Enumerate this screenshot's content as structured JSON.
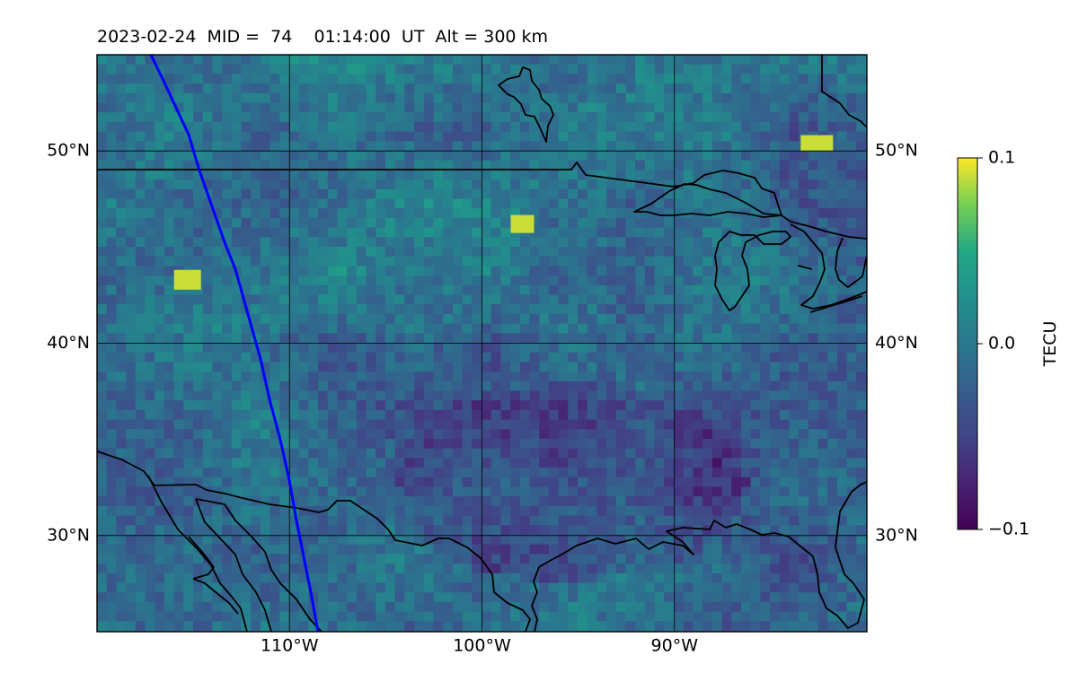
{
  "title": "2023-02-24  MID =  74    01:14:00  UT  Alt = 300 km",
  "map": {
    "lon_range": [
      -120,
      -80
    ],
    "lat_range": [
      25,
      55
    ],
    "lat_ticks": [
      {
        "value": 50,
        "label": "50°N"
      },
      {
        "value": 40,
        "label": "40°N"
      },
      {
        "value": 30,
        "label": "30°N"
      }
    ],
    "lon_ticks": [
      {
        "value": -110,
        "label": "110°W"
      },
      {
        "value": -100,
        "label": "100°W"
      },
      {
        "value": -90,
        "label": "90°W"
      }
    ],
    "grid": true,
    "coastlines": true,
    "track_color": "#0000ff"
  },
  "colorbar": {
    "label": "TECU",
    "colormap": "viridis",
    "min": -0.1,
    "max": 0.1,
    "ticks": [
      {
        "value": 0.1,
        "label": "0.1"
      },
      {
        "value": 0.0,
        "label": "0.0"
      },
      {
        "value": -0.1,
        "label": "−0.1"
      }
    ]
  }
}
